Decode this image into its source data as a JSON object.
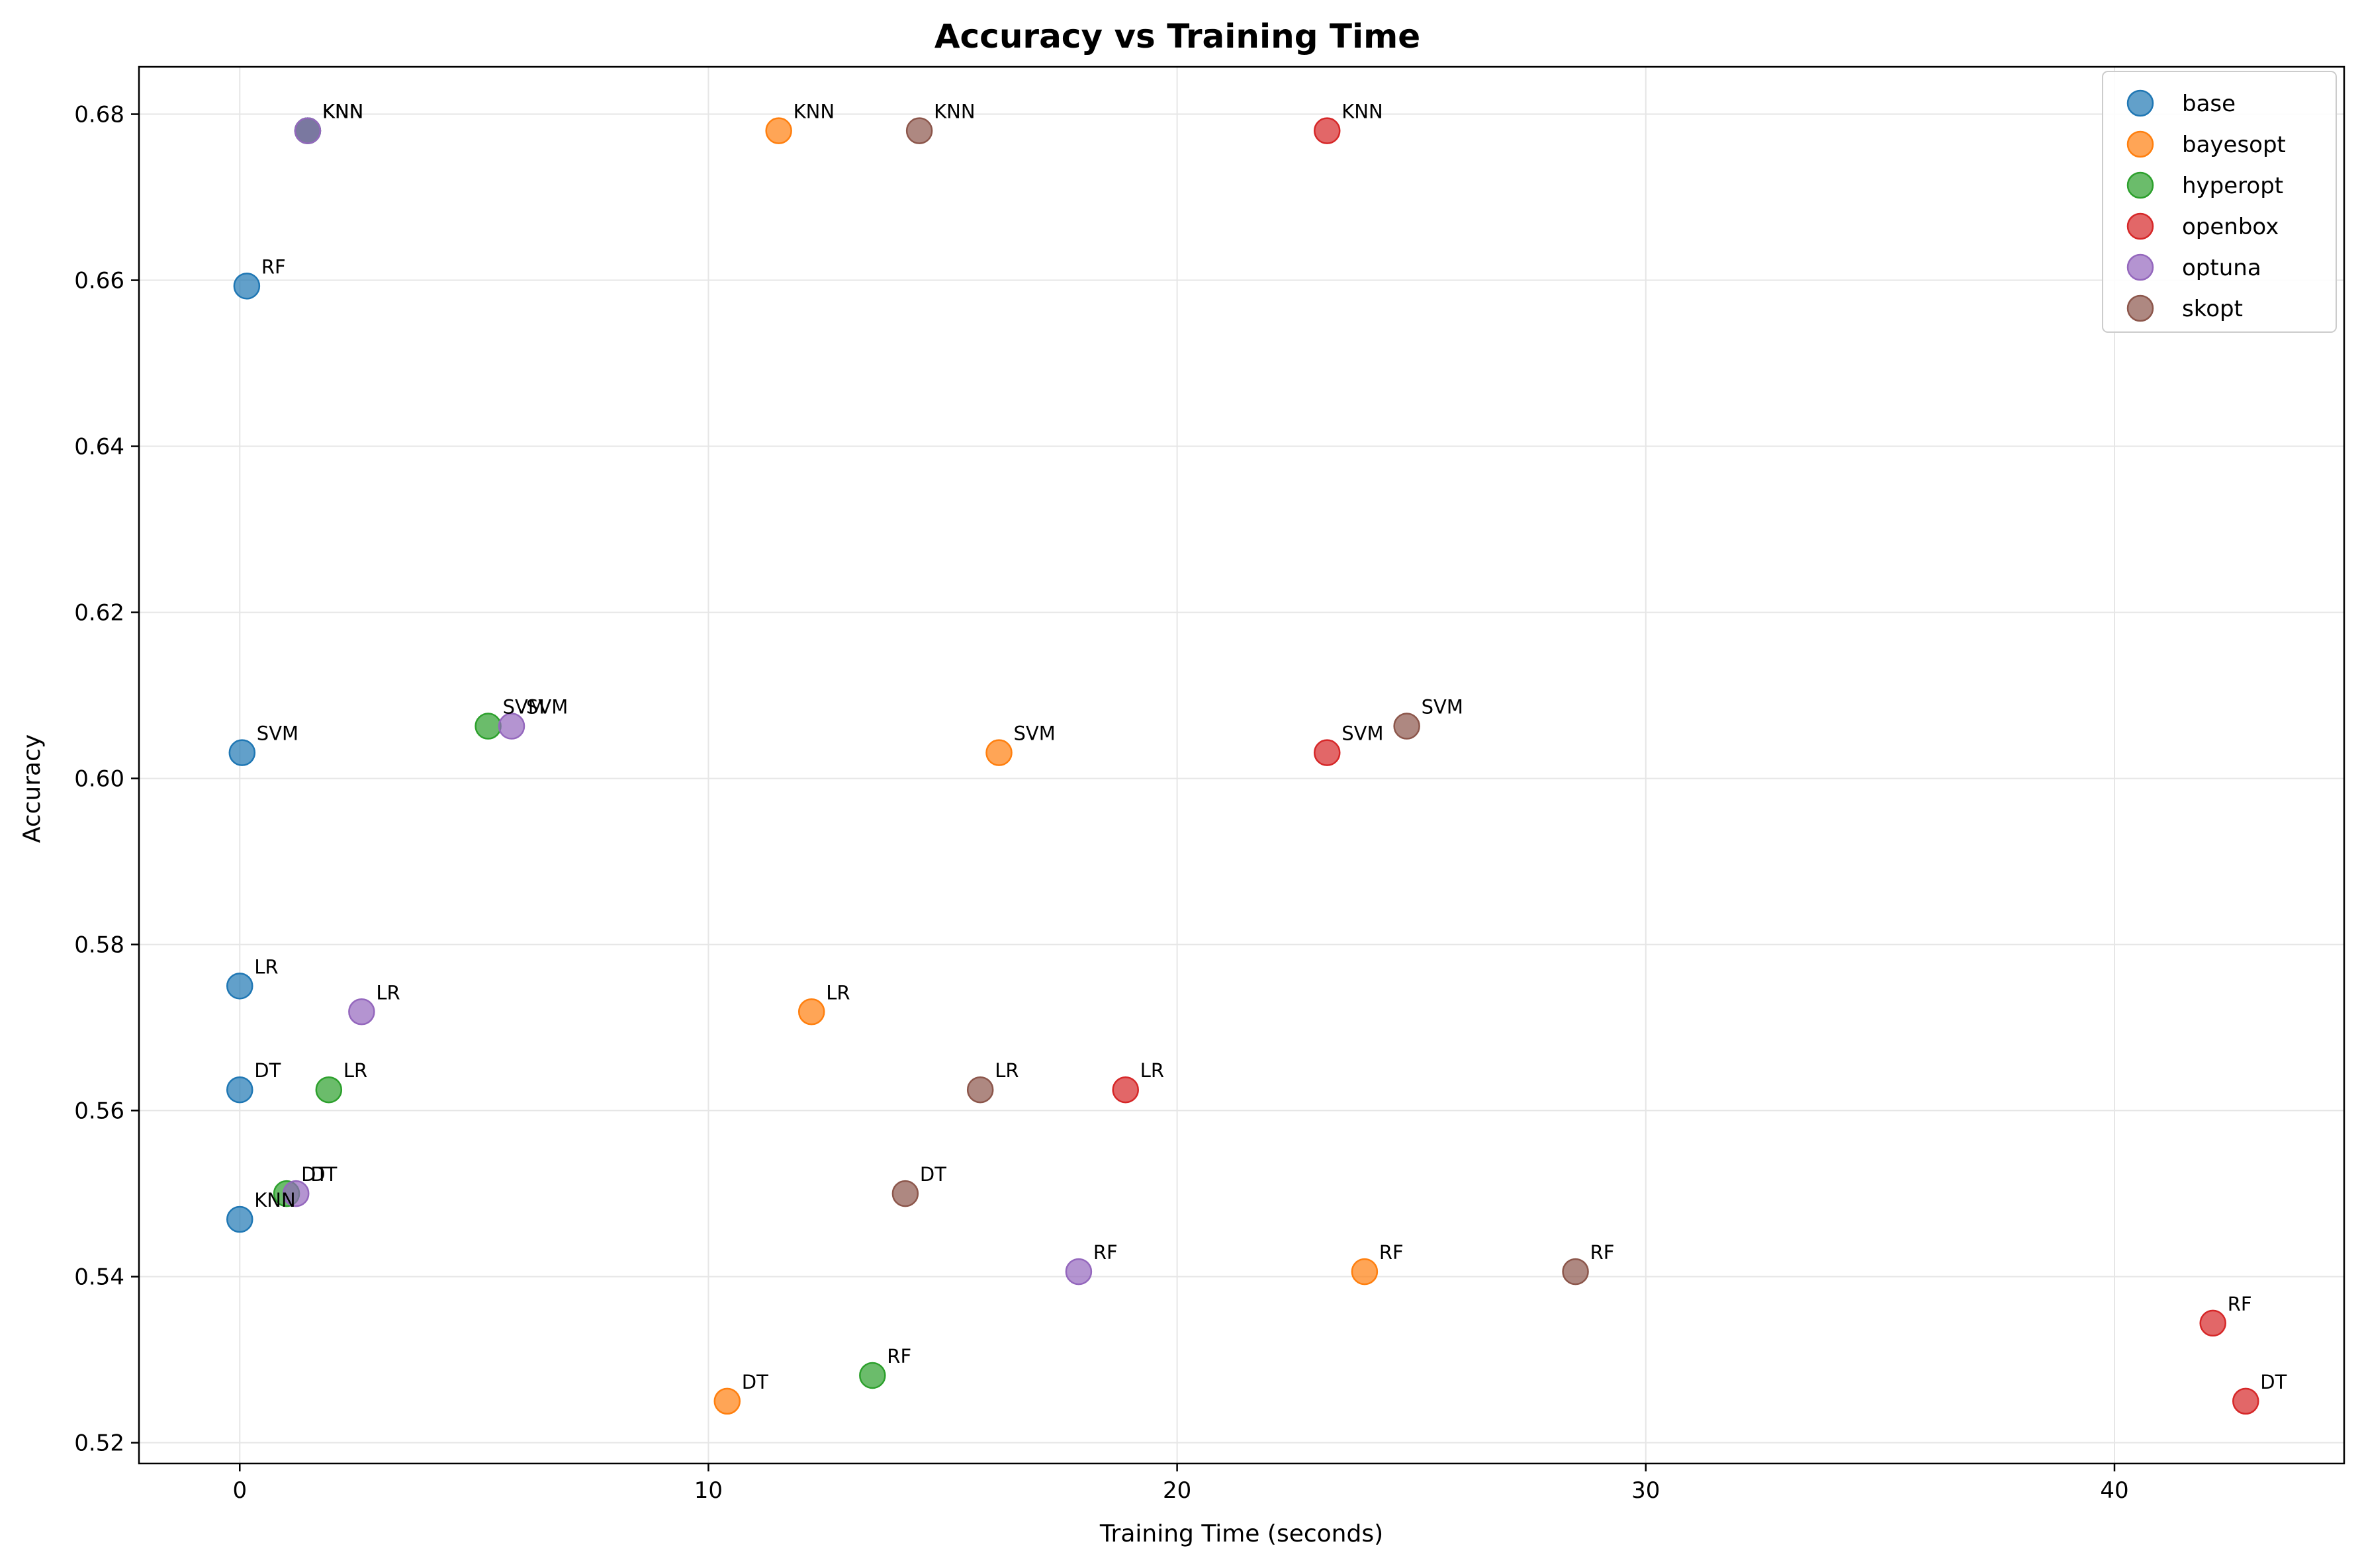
{
  "chart_data": {
    "type": "scatter",
    "title": "Accuracy vs Training Time",
    "xlabel": "Training Time (seconds)",
    "ylabel": "Accuracy",
    "xlim": [
      -2.15,
      44.9
    ],
    "ylim": [
      0.5175,
      0.6857
    ],
    "xticks": [
      0,
      10,
      20,
      30,
      40
    ],
    "yticks": [
      0.52,
      0.54,
      0.56,
      0.58,
      0.6,
      0.62,
      0.64,
      0.66,
      0.68
    ],
    "grid": true,
    "legend_position": "top-right",
    "series": [
      {
        "name": "base",
        "color": "#1f77b4",
        "points": [
          {
            "label": "KNN",
            "x": 1.45,
            "y": 0.678
          },
          {
            "label": "RF",
            "x": 0.15,
            "y": 0.6593
          },
          {
            "label": "SVM",
            "x": 0.05,
            "y": 0.6031
          },
          {
            "label": "LR",
            "x": 0.0,
            "y": 0.575
          },
          {
            "label": "DT",
            "x": 0.0,
            "y": 0.5625
          },
          {
            "label": "KNN",
            "x": 0.0,
            "y": 0.5469
          }
        ]
      },
      {
        "name": "bayesopt",
        "color": "#ff7f0e",
        "points": [
          {
            "label": "KNN",
            "x": 11.5,
            "y": 0.678
          },
          {
            "label": "SVM",
            "x": 16.2,
            "y": 0.6031
          },
          {
            "label": "LR",
            "x": 12.2,
            "y": 0.5719
          },
          {
            "label": "RF",
            "x": 24.0,
            "y": 0.5406
          },
          {
            "label": "DT",
            "x": 10.4,
            "y": 0.525
          }
        ]
      },
      {
        "name": "hyperopt",
        "color": "#2ca02c",
        "points": [
          {
            "label": "KNN",
            "x": 1.45,
            "y": 0.678
          },
          {
            "label": "SVM",
            "x": 5.3,
            "y": 0.6063
          },
          {
            "label": "LR",
            "x": 1.9,
            "y": 0.5625
          },
          {
            "label": "DT",
            "x": 1.0,
            "y": 0.55
          },
          {
            "label": "RF",
            "x": 13.5,
            "y": 0.5281
          }
        ]
      },
      {
        "name": "openbox",
        "color": "#d62728",
        "points": [
          {
            "label": "KNN",
            "x": 23.2,
            "y": 0.678
          },
          {
            "label": "SVM",
            "x": 23.2,
            "y": 0.6031
          },
          {
            "label": "LR",
            "x": 18.9,
            "y": 0.5625
          },
          {
            "label": "RF",
            "x": 42.1,
            "y": 0.5344
          },
          {
            "label": "DT",
            "x": 42.8,
            "y": 0.525
          }
        ]
      },
      {
        "name": "optuna",
        "color": "#9467bd",
        "points": [
          {
            "label": "KNN",
            "x": 1.45,
            "y": 0.678
          },
          {
            "label": "SVM",
            "x": 5.8,
            "y": 0.6063
          },
          {
            "label": "LR",
            "x": 2.6,
            "y": 0.5719
          },
          {
            "label": "DT",
            "x": 1.2,
            "y": 0.55
          },
          {
            "label": "RF",
            "x": 17.9,
            "y": 0.5406
          }
        ]
      },
      {
        "name": "skopt",
        "color": "#8c564b",
        "points": [
          {
            "label": "KNN",
            "x": 14.5,
            "y": 0.678
          },
          {
            "label": "SVM",
            "x": 24.9,
            "y": 0.6063
          },
          {
            "label": "LR",
            "x": 15.8,
            "y": 0.5625
          },
          {
            "label": "DT",
            "x": 14.2,
            "y": 0.55
          },
          {
            "label": "RF",
            "x": 28.5,
            "y": 0.5406
          }
        ]
      }
    ]
  }
}
